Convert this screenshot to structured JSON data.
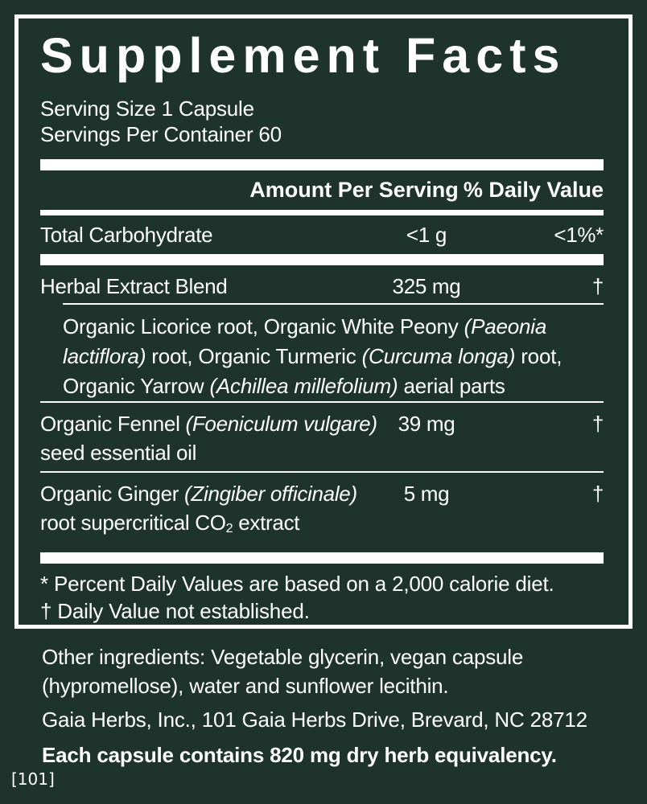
{
  "page": {
    "background_color": "#1d332c",
    "text_color": "#ffffff",
    "corner_ref": "[101]"
  },
  "panel": {
    "title": "Supplement Facts",
    "serving_size": "Serving Size 1 Capsule",
    "servings_per_container": "Servings Per Container 60",
    "header": {
      "amount": "Amount Per Serving",
      "daily_value": "% Daily Value"
    },
    "rows": [
      {
        "name_lines": [
          [
            {
              "t": "Total Carbohydrate"
            }
          ]
        ],
        "amount": "<1 g",
        "dv": "<1%*"
      },
      {
        "name_lines": [
          [
            {
              "t": "Herbal Extract Blend"
            }
          ]
        ],
        "amount": "325 mg",
        "dv": "†"
      },
      {
        "name_lines": [
          [
            {
              "t": "Organic Fennel "
            },
            {
              "t": "(Foeniculum vulgare)",
              "i": true
            }
          ],
          [
            {
              "t": "seed essential oil"
            }
          ]
        ],
        "amount": "39 mg",
        "dv": "†"
      },
      {
        "name_lines": [
          [
            {
              "t": "Organic Ginger "
            },
            {
              "t": "(Zingiber officinale)",
              "i": true
            }
          ],
          [
            {
              "t": "root supercritical CO"
            },
            {
              "t": "2",
              "sub": true
            },
            {
              "t": " extract"
            }
          ]
        ],
        "amount": "5 mg",
        "dv": "†"
      }
    ],
    "blend_component_lines": [
      [
        {
          "t": "Organic Licorice root, Organic White Peony "
        },
        {
          "t": "(Paeonia",
          "i": true
        }
      ],
      [
        {
          "t": "lactiflora)",
          "i": true
        },
        {
          "t": " root, Organic Turmeric "
        },
        {
          "t": "(Curcuma longa)",
          "i": true
        },
        {
          "t": " root,"
        }
      ],
      [
        {
          "t": "Organic Yarrow "
        },
        {
          "t": "(Achillea millefolium)",
          "i": true
        },
        {
          "t": " aerial parts"
        }
      ]
    ],
    "footnotes": [
      "* Percent Daily Values are based on a 2,000 calorie diet.",
      "† Daily Value not established."
    ]
  },
  "below_panel": {
    "other_ingredients_lines": [
      "Other ingredients: Vegetable glycerin, vegan capsule",
      "(hypromellose), water and sunflower lecithin."
    ],
    "manufacturer": "Gaia Herbs, Inc., 101 Gaia Herbs Drive, Brevard, NC 28712",
    "equivalency": "Each capsule contains 820 mg dry herb equivalency."
  }
}
